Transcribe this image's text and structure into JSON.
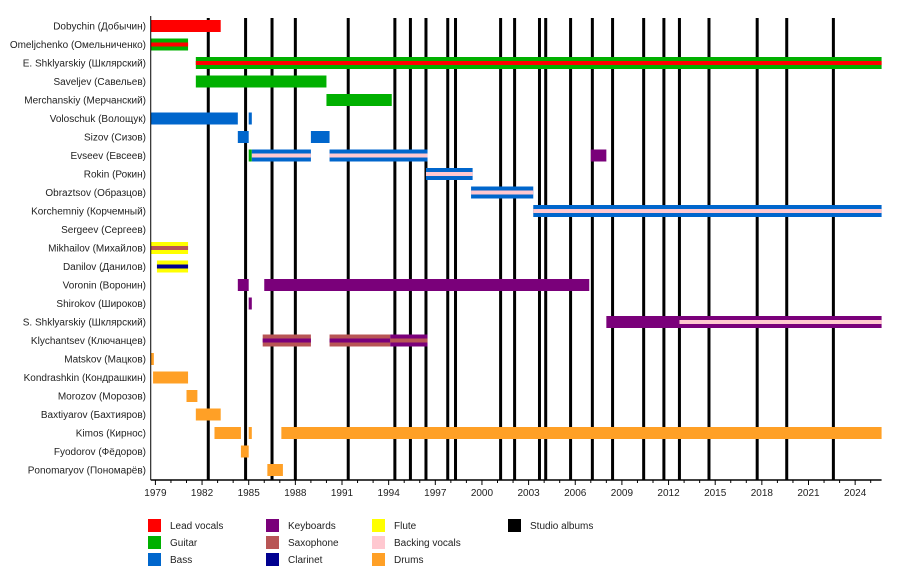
{
  "chart_data": {
    "type": "timeline",
    "xlim": [
      1978.7,
      2025.7
    ],
    "tick_labels": [
      "1979",
      "1982",
      "1985",
      "1988",
      "1991",
      "1994",
      "1997",
      "2000",
      "2003",
      "2006",
      "2009",
      "2012",
      "2015",
      "2018",
      "2021",
      "2024"
    ],
    "roles": {
      "lead": {
        "label": "Lead vocals",
        "color": "#ff0000"
      },
      "guitar": {
        "label": "Guitar",
        "color": "#00b000"
      },
      "bass": {
        "label": "Bass",
        "color": "#0066cc"
      },
      "keyboards": {
        "label": "Keyboards",
        "color": "#7a007a"
      },
      "saxophone": {
        "label": "Saxophone",
        "color": "#b85555"
      },
      "clarinet": {
        "label": "Clarinet",
        "color": "#000090"
      },
      "flute": {
        "label": "Flute",
        "color": "#ffff00"
      },
      "backing": {
        "label": "Backing vocals",
        "color": "#ffc8d0"
      },
      "drums": {
        "label": "Drums",
        "color": "#ffa026"
      },
      "albums": {
        "label": "Studio albums",
        "color": "#000000"
      }
    },
    "legend": [
      [
        "lead",
        "guitar",
        "bass"
      ],
      [
        "keyboards",
        "saxophone",
        "clarinet"
      ],
      [
        "flute",
        "backing",
        "drums"
      ],
      [
        "albums"
      ]
    ],
    "studio_albums": [
      1982.4,
      1984.8,
      1986.5,
      1988.0,
      1991.4,
      1994.4,
      1995.4,
      1996.4,
      1997.8,
      1998.3,
      2001.2,
      2002.1,
      2003.7,
      2004.1,
      2005.7,
      2007.1,
      2008.4,
      2010.4,
      2011.7,
      2012.7,
      2014.6,
      2017.7,
      2019.6,
      2022.6
    ],
    "members": [
      {
        "name": "Dobychin (Добычин)",
        "bars": [
          {
            "start": 1978.7,
            "end": 1983.2,
            "role": "lead"
          }
        ]
      },
      {
        "name": "Omeljchenko (Омельниченко)",
        "bars": [
          {
            "start": 1978.7,
            "end": 1981.1,
            "role": "guitar",
            "secondary": "lead"
          }
        ]
      },
      {
        "name": "E. Shklyarskiy (Шклярский)",
        "bars": [
          {
            "start": 1981.6,
            "end": 2025.7,
            "role": "guitar",
            "secondary": "lead"
          }
        ]
      },
      {
        "name": "Saveljev (Савельев)",
        "bars": [
          {
            "start": 1981.6,
            "end": 1990.0,
            "role": "guitar"
          }
        ]
      },
      {
        "name": "Merchanskiy (Мерчанский)",
        "bars": [
          {
            "start": 1990.0,
            "end": 1994.2,
            "role": "guitar"
          }
        ]
      },
      {
        "name": "Voloschuk (Волощук)",
        "bars": [
          {
            "start": 1978.7,
            "end": 1984.3,
            "role": "bass"
          },
          {
            "start": 1985.0,
            "end": 1985.2,
            "role": "bass"
          }
        ]
      },
      {
        "name": "Sizov (Сизов)",
        "bars": [
          {
            "start": 1984.3,
            "end": 1985.0,
            "role": "bass"
          },
          {
            "start": 1989.0,
            "end": 1990.2,
            "role": "bass"
          }
        ]
      },
      {
        "name": "Evseev (Евсеев)",
        "bars": [
          {
            "start": 1985.0,
            "end": 1985.2,
            "role": "guitar"
          },
          {
            "start": 1985.2,
            "end": 1989.0,
            "role": "bass",
            "secondary": "backing"
          },
          {
            "start": 1990.2,
            "end": 1996.5,
            "role": "bass",
            "secondary": "backing"
          },
          {
            "start": 2007.0,
            "end": 2008.0,
            "role": "keyboards"
          }
        ]
      },
      {
        "name": "Rokin (Рокин)",
        "bars": [
          {
            "start": 1996.4,
            "end": 1999.4,
            "role": "bass",
            "secondary": "backing"
          }
        ]
      },
      {
        "name": "Obraztsov (Образцов)",
        "bars": [
          {
            "start": 1999.3,
            "end": 2003.3,
            "role": "bass",
            "secondary": "backing"
          }
        ]
      },
      {
        "name": "Korchemniy (Корчемный)",
        "bars": [
          {
            "start": 2003.3,
            "end": 2025.7,
            "role": "bass",
            "secondary": "backing"
          }
        ]
      },
      {
        "name": "Sergeev (Сергеев)",
        "bars": []
      },
      {
        "name": "Mikhailov (Михайлов)",
        "bars": [
          {
            "start": 1978.7,
            "end": 1981.1,
            "role": "flute",
            "secondary": "saxophone"
          }
        ]
      },
      {
        "name": "Danilov (Данилов)",
        "bars": [
          {
            "start": 1979.1,
            "end": 1981.1,
            "role": "flute",
            "secondary": "clarinet"
          }
        ]
      },
      {
        "name": "Voronin (Воронин)",
        "bars": [
          {
            "start": 1984.3,
            "end": 1985.0,
            "role": "keyboards"
          },
          {
            "start": 1986.0,
            "end": 2006.9,
            "role": "keyboards"
          }
        ]
      },
      {
        "name": "Shirokov (Широков)",
        "bars": [
          {
            "start": 1985.0,
            "end": 1985.2,
            "role": "keyboards"
          }
        ]
      },
      {
        "name": "S. Shklyarskiy (Шклярский)",
        "bars": [
          {
            "start": 2008.0,
            "end": 2012.7,
            "role": "keyboards"
          },
          {
            "start": 2012.7,
            "end": 2025.7,
            "role": "keyboards",
            "secondary": "backing"
          }
        ]
      },
      {
        "name": "Klychantsev (Ключанцев)",
        "bars": [
          {
            "start": 1985.9,
            "end": 1989.0,
            "role": "saxophone",
            "secondary": "keyboards"
          },
          {
            "start": 1990.2,
            "end": 1994.1,
            "role": "saxophone",
            "secondary": "keyboards"
          },
          {
            "start": 1994.1,
            "end": 1996.5,
            "role": "keyboards",
            "secondary": "saxophone"
          }
        ]
      },
      {
        "name": "Matskov (Мацков)",
        "bars": [
          {
            "start": 1978.7,
            "end": 1978.9,
            "role": "drums"
          }
        ]
      },
      {
        "name": "Kondrashkin (Кондрашкин)",
        "bars": [
          {
            "start": 1978.85,
            "end": 1981.1,
            "role": "drums"
          }
        ]
      },
      {
        "name": "Morozov (Морозов)",
        "bars": [
          {
            "start": 1981.0,
            "end": 1981.7,
            "role": "drums"
          }
        ]
      },
      {
        "name": "Baxtiyarov (Бахтияров)",
        "bars": [
          {
            "start": 1981.6,
            "end": 1983.2,
            "role": "drums"
          }
        ]
      },
      {
        "name": "Kimos (Кирнос)",
        "bars": [
          {
            "start": 1982.8,
            "end": 1984.5,
            "role": "drums"
          },
          {
            "start": 1985.0,
            "end": 1985.2,
            "role": "drums"
          },
          {
            "start": 1987.1,
            "end": 2025.7,
            "role": "drums"
          }
        ]
      },
      {
        "name": "Fyodorov (Фёдоров)",
        "bars": [
          {
            "start": 1984.5,
            "end": 1985.0,
            "role": "drums"
          }
        ]
      },
      {
        "name": "Ponomaryov (Пономарёв)",
        "bars": [
          {
            "start": 1986.2,
            "end": 1987.2,
            "role": "drums"
          }
        ]
      }
    ]
  }
}
